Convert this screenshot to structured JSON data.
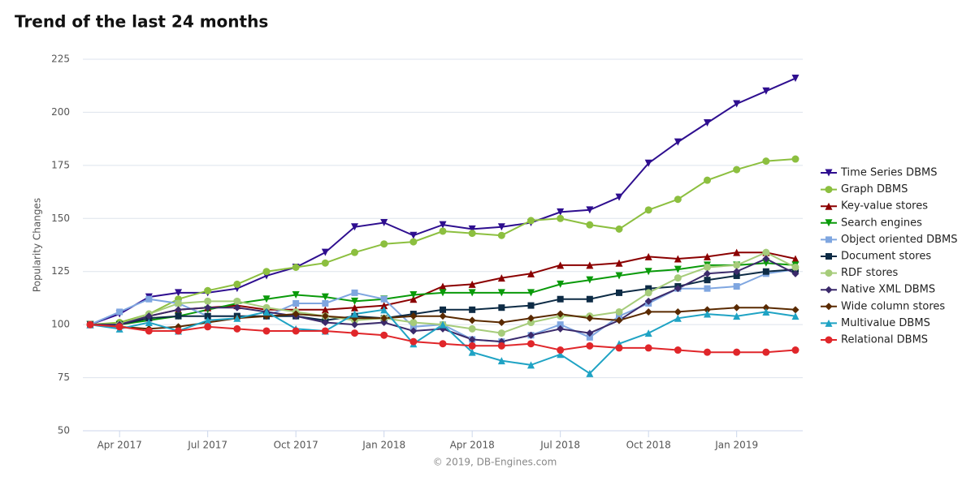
{
  "chart_data": {
    "type": "line",
    "title": "Trend of the last 24 months",
    "y_label": "Popularity Changes",
    "credits": "© 2019, DB-Engines.com",
    "categories": [
      null,
      "Apr 2017",
      null,
      null,
      "Jul 2017",
      null,
      null,
      "Oct 2017",
      null,
      null,
      "Jan 2018",
      null,
      null,
      "Apr 2018",
      null,
      null,
      "Jul 2018",
      null,
      null,
      "Oct 2018",
      null,
      null,
      "Jan 2019",
      null,
      null
    ],
    "ylim": [
      50,
      225
    ],
    "yticks": [
      50,
      75,
      100,
      125,
      150,
      175,
      200,
      225
    ],
    "grid": true,
    "legend": "right",
    "series": [
      {
        "name": "Time Series DBMS",
        "color": "#2e0e8f",
        "marker": "triangle-down",
        "values": [
          100,
          105,
          113,
          115,
          115,
          117,
          123,
          127,
          134,
          146,
          148,
          142,
          147,
          145,
          146,
          148,
          153,
          154,
          160,
          176,
          186,
          195,
          204,
          210,
          216
        ]
      },
      {
        "name": "Graph DBMS",
        "color": "#8cbf3f",
        "marker": "circle",
        "values": [
          100,
          101,
          105,
          112,
          116,
          119,
          125,
          127,
          129,
          134,
          138,
          139,
          144,
          143,
          142,
          149,
          150,
          147,
          145,
          154,
          159,
          168,
          173,
          177,
          178
        ]
      },
      {
        "name": "Key-value stores",
        "color": "#8b0000",
        "marker": "triangle",
        "values": [
          100,
          100,
          104,
          107,
          108,
          109,
          107,
          107,
          107,
          108,
          109,
          112,
          118,
          119,
          122,
          124,
          128,
          128,
          129,
          132,
          131,
          132,
          134,
          134,
          131
        ]
      },
      {
        "name": "Search engines",
        "color": "#0a9a0a",
        "marker": "triangle-down",
        "values": [
          100,
          100,
          102,
          104,
          107,
          110,
          112,
          114,
          113,
          111,
          112,
          114,
          115,
          115,
          115,
          115,
          119,
          121,
          123,
          125,
          126,
          128,
          128,
          129,
          128
        ]
      },
      {
        "name": "Object oriented DBMS",
        "color": "#7fa6e0",
        "marker": "square",
        "values": [
          100,
          106,
          112,
          110,
          104,
          104,
          104,
          110,
          110,
          115,
          112,
          99,
          100,
          93,
          92,
          95,
          100,
          94,
          104,
          110,
          117,
          117,
          118,
          124,
          126
        ]
      },
      {
        "name": "Document stores",
        "color": "#0d2b45",
        "marker": "square",
        "values": [
          100,
          100,
          103,
          104,
          104,
          104,
          104,
          104,
          102,
          104,
          103,
          105,
          107,
          107,
          108,
          109,
          112,
          112,
          115,
          117,
          118,
          121,
          123,
          125,
          126
        ]
      },
      {
        "name": "RDF stores",
        "color": "#a6cc7a",
        "marker": "circle",
        "values": [
          100,
          100,
          105,
          110,
          111,
          111,
          108,
          106,
          104,
          102,
          103,
          101,
          100,
          98,
          96,
          101,
          104,
          104,
          106,
          115,
          122,
          127,
          128,
          134,
          127
        ]
      },
      {
        "name": "Native XML DBMS",
        "color": "#3b2a6b",
        "marker": "diamond",
        "values": [
          100,
          100,
          104,
          107,
          108,
          108,
          106,
          104,
          101,
          100,
          101,
          97,
          98,
          93,
          92,
          95,
          98,
          96,
          102,
          111,
          117,
          124,
          125,
          131,
          124
        ]
      },
      {
        "name": "Wide column stores",
        "color": "#5a2a00",
        "marker": "diamond",
        "values": [
          100,
          99,
          98,
          99,
          101,
          103,
          104,
          105,
          104,
          103,
          103,
          104,
          104,
          102,
          101,
          103,
          105,
          103,
          102,
          106,
          106,
          107,
          108,
          108,
          107
        ]
      },
      {
        "name": "Multivalue DBMS",
        "color": "#1fa3c4",
        "marker": "triangle",
        "values": [
          100,
          98,
          101,
          97,
          102,
          103,
          106,
          98,
          97,
          105,
          107,
          91,
          100,
          87,
          83,
          81,
          86,
          77,
          91,
          96,
          103,
          105,
          104,
          106,
          104
        ]
      },
      {
        "name": "Relational DBMS",
        "color": "#e0262a",
        "marker": "circle",
        "values": [
          100,
          99,
          97,
          97,
          99,
          98,
          97,
          97,
          97,
          96,
          95,
          92,
          91,
          90,
          90,
          91,
          88,
          90,
          89,
          89,
          88,
          87,
          87,
          87,
          88
        ]
      }
    ]
  }
}
